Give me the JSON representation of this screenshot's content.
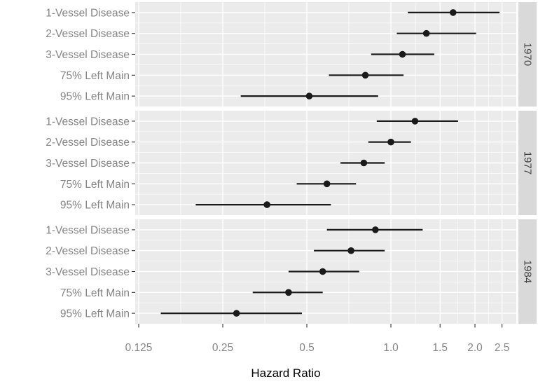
{
  "colors": {
    "background": "#FFFFFF",
    "panel_bg": "#EBEBEB",
    "gridline": "#FFFFFF",
    "point": "#1A1A1A",
    "strip_bg": "#D9D9D9",
    "strip_text": "#424242",
    "axis_text": "#858585",
    "axis_title": "#000000",
    "tick_mark": "#333333"
  },
  "chart_data": {
    "type": "scatter",
    "subtype": "forest-pointrange",
    "title": "",
    "xlabel": "Hazard Ratio",
    "ylabel": "",
    "x_scale": "log2",
    "xlim": [
      0.12,
      2.85
    ],
    "grid": "on",
    "legend": "none",
    "x_ticks": [
      0.125,
      0.25,
      0.5,
      1.0,
      1.5,
      2.0,
      2.5
    ],
    "x_tick_labels": [
      "0.125",
      "0.25",
      "0.5",
      "1.0",
      "1.5",
      "2.0",
      "2.5"
    ],
    "x_minor_ticks": [
      0.17678,
      0.35355,
      0.70711,
      1.22474,
      1.73205,
      2.23607
    ],
    "categories": [
      "1-Vessel Disease",
      "2-Vessel Disease",
      "3-Vessel Disease",
      "75% Left Main",
      "95% Left Main"
    ],
    "facet_variable": "year",
    "facets": [
      {
        "label": "1970",
        "rows": [
          {
            "category": "1-Vessel Disease",
            "hr": 1.67,
            "lo": 1.15,
            "hi": 2.45
          },
          {
            "category": "2-Vessel Disease",
            "hr": 1.34,
            "lo": 1.05,
            "hi": 2.02
          },
          {
            "category": "3-Vessel Disease",
            "hr": 1.1,
            "lo": 0.85,
            "hi": 1.43
          },
          {
            "category": "75% Left Main",
            "hr": 0.81,
            "lo": 0.6,
            "hi": 1.11
          },
          {
            "category": "95% Left Main",
            "hr": 0.51,
            "lo": 0.29,
            "hi": 0.9
          }
        ]
      },
      {
        "label": "1977",
        "rows": [
          {
            "category": "1-Vessel Disease",
            "hr": 1.22,
            "lo": 0.89,
            "hi": 1.74
          },
          {
            "category": "2-Vessel Disease",
            "hr": 1.0,
            "lo": 0.83,
            "hi": 1.18
          },
          {
            "category": "3-Vessel Disease",
            "hr": 0.8,
            "lo": 0.66,
            "hi": 0.95
          },
          {
            "category": "75% Left Main",
            "hr": 0.59,
            "lo": 0.46,
            "hi": 0.75
          },
          {
            "category": "95% Left Main",
            "hr": 0.36,
            "lo": 0.2,
            "hi": 0.61
          }
        ]
      },
      {
        "label": "1984",
        "rows": [
          {
            "category": "1-Vessel Disease",
            "hr": 0.88,
            "lo": 0.59,
            "hi": 1.3
          },
          {
            "category": "2-Vessel Disease",
            "hr": 0.72,
            "lo": 0.53,
            "hi": 0.95
          },
          {
            "category": "3-Vessel Disease",
            "hr": 0.57,
            "lo": 0.43,
            "hi": 0.77
          },
          {
            "category": "75% Left Main",
            "hr": 0.43,
            "lo": 0.32,
            "hi": 0.57
          },
          {
            "category": "95% Left Main",
            "hr": 0.28,
            "lo": 0.15,
            "hi": 0.48
          }
        ]
      }
    ]
  }
}
